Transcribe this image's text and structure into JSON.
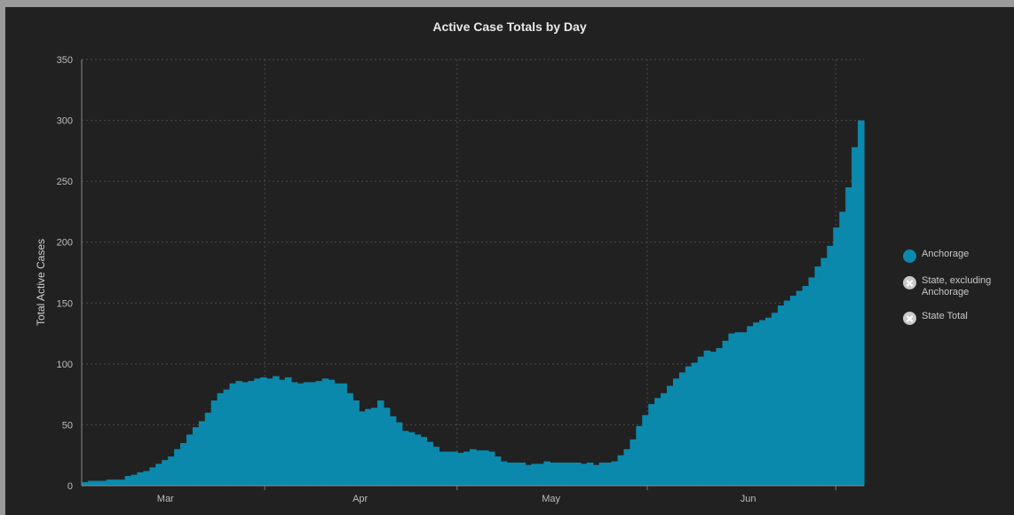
{
  "chart_data": {
    "type": "area",
    "title": "Active Case Totals by Day",
    "xlabel": "",
    "ylabel": "Total Active Cases",
    "ylim": [
      0,
      350
    ],
    "yticks": [
      0,
      50,
      100,
      150,
      200,
      250,
      300,
      350
    ],
    "xticks": [
      "Mar",
      "Apr",
      "May",
      "Jun"
    ],
    "grid": true,
    "legend_position": "right",
    "series": [
      {
        "name": "Anchorage",
        "color": "#0a89ad",
        "visible": true,
        "values": [
          3,
          4,
          4,
          4,
          5,
          5,
          5,
          8,
          9,
          11,
          12,
          15,
          18,
          21,
          24,
          30,
          35,
          42,
          48,
          53,
          60,
          70,
          76,
          79,
          84,
          86,
          85,
          86,
          88,
          89,
          88,
          90,
          87,
          89,
          85,
          84,
          85,
          85,
          86,
          88,
          87,
          84,
          84,
          76,
          70,
          61,
          63,
          64,
          70,
          64,
          57,
          52,
          45,
          44,
          42,
          40,
          36,
          32,
          28,
          28,
          28,
          27,
          28,
          30,
          29,
          29,
          28,
          24,
          20,
          19,
          19,
          19,
          17,
          18,
          18,
          20,
          19,
          19,
          19,
          19,
          19,
          18,
          19,
          17,
          19,
          19,
          20,
          25,
          30,
          38,
          49,
          58,
          67,
          72,
          76,
          82,
          88,
          93,
          98,
          101,
          106,
          111,
          110,
          113,
          119,
          125,
          126,
          126,
          131,
          134,
          136,
          138,
          142,
          148,
          152,
          156,
          160,
          164,
          171,
          180,
          187,
          197,
          212,
          225,
          245,
          278,
          300
        ]
      },
      {
        "name": "State, excluding Anchorage",
        "visible": false
      },
      {
        "name": "State Total",
        "visible": false
      }
    ]
  }
}
